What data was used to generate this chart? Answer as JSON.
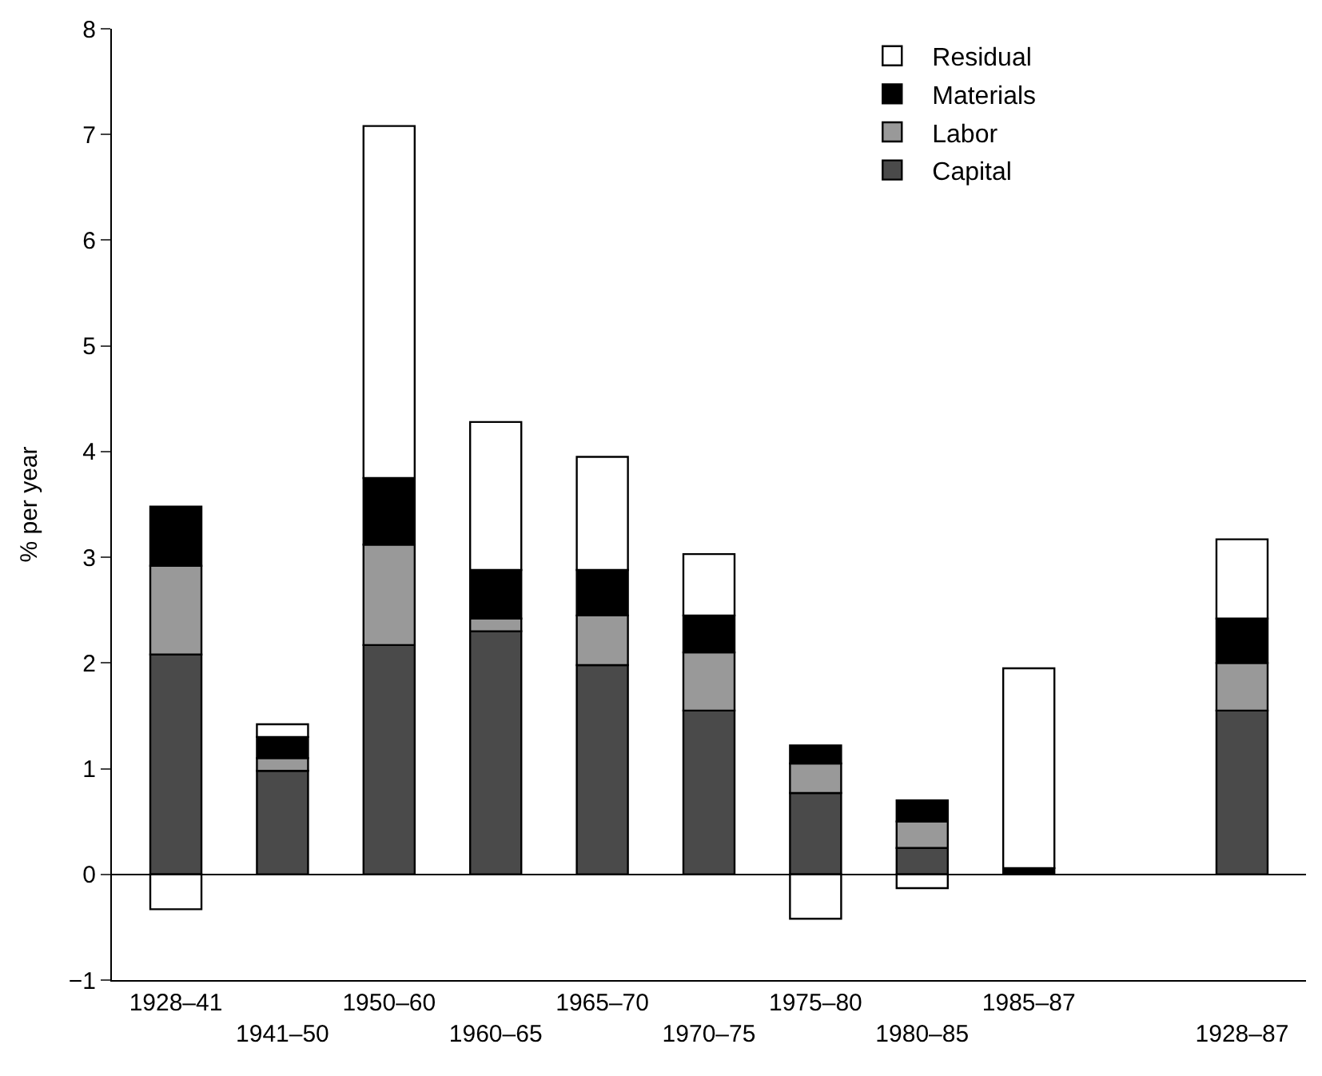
{
  "chart_data": {
    "type": "bar",
    "stacked": true,
    "ylabel": "% per year",
    "categories": [
      "1928–41",
      "1941–50",
      "1950–60",
      "1960–65",
      "1965–70",
      "1970–75",
      "1975–80",
      "1980–85",
      "1985–87",
      null,
      "1928–87"
    ],
    "series": [
      {
        "name": "Capital",
        "color": "#4a4a4a",
        "values": [
          2.08,
          0.98,
          2.17,
          2.3,
          1.98,
          1.55,
          0.77,
          0.25,
          0,
          null,
          1.55
        ]
      },
      {
        "name": "Labor",
        "color": "#999999",
        "values": [
          0.84,
          0.12,
          0.95,
          0.12,
          0.47,
          0.55,
          0.28,
          0.25,
          0,
          null,
          0.45
        ]
      },
      {
        "name": "Materials",
        "color": "#000000",
        "values": [
          0.56,
          0.2,
          0.63,
          0.46,
          0.43,
          0.35,
          0.17,
          0.2,
          0.06,
          null,
          0.42
        ]
      },
      {
        "name": "Residual",
        "color": "#ffffff",
        "values": [
          -0.33,
          0.12,
          3.33,
          1.4,
          1.07,
          0.58,
          -0.42,
          -0.13,
          1.89,
          null,
          0.75
        ]
      }
    ],
    "ylim": [
      -1,
      8
    ],
    "yticks": [
      {
        "value": -1,
        "label": "−1"
      },
      0,
      1,
      2,
      3,
      4,
      5,
      6,
      7,
      8
    ],
    "legend": "top right"
  }
}
